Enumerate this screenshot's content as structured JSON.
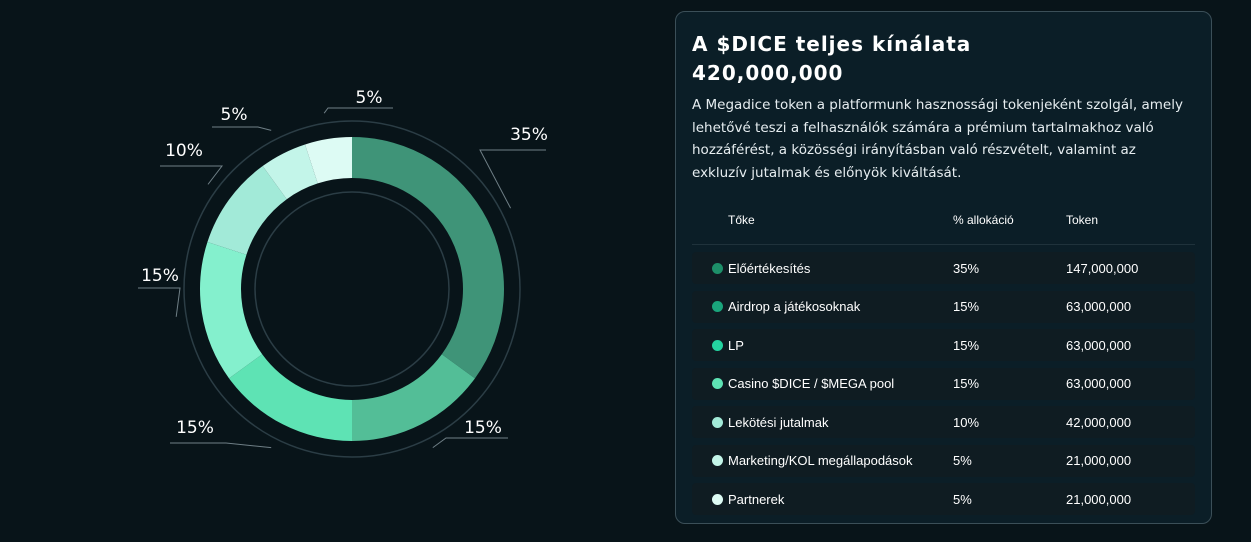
{
  "chart_data": {
    "type": "pie",
    "variant": "donut",
    "categories": [
      "Előértékesítés",
      "Airdrop a játékosoknak",
      "LP",
      "Casino $DICE / $MEGA pool",
      "Lekötési jutalmak",
      "Marketing/KOL megállapodások",
      "Partnerek"
    ],
    "values": [
      35,
      15,
      15,
      15,
      10,
      5,
      5
    ],
    "labels": [
      "35%",
      "15%",
      "15%",
      "15%",
      "10%",
      "5%",
      "5%"
    ],
    "colors": [
      "#3f9478",
      "#53be97",
      "#5ee3b4",
      "#84f0cd",
      "#a2ead8",
      "#c3f5e9",
      "#ddfbf4"
    ]
  },
  "panel": {
    "title": "A $DICE teljes kínálata",
    "total": "420,000,000",
    "description": "A Megadice token a platformunk hasznossági tokenjeként szolgál, amely lehetővé teszi a felhasználók számára a prémium tartalmakhoz való hozzáférést, a közösségi irányításban való részvételt, valamint az exkluzív jutalmak és előnyök kiváltását.",
    "table": {
      "headers": [
        "Tőke",
        "% allokáció",
        "Token"
      ],
      "rows": [
        {
          "name": "Előértékesítés",
          "pct": "35%",
          "tokens": "147,000,000",
          "color": "#1d8f69"
        },
        {
          "name": "Airdrop a játékosoknak",
          "pct": "15%",
          "tokens": "63,000,000",
          "color": "#1aa57c"
        },
        {
          "name": "LP",
          "pct": "15%",
          "tokens": "63,000,000",
          "color": "#24d3a0"
        },
        {
          "name": "Casino $DICE / $MEGA pool",
          "pct": "15%",
          "tokens": "63,000,000",
          "color": "#5ee3b4"
        },
        {
          "name": "Lekötési jutalmak",
          "pct": "10%",
          "tokens": "42,000,000",
          "color": "#a2ead8"
        },
        {
          "name": "Marketing/KOL megállapodások",
          "pct": "5%",
          "tokens": "21,000,000",
          "color": "#c3f5e9"
        },
        {
          "name": "Partnerek",
          "pct": "5%",
          "tokens": "21,000,000",
          "color": "#ddfbf4"
        }
      ]
    }
  }
}
